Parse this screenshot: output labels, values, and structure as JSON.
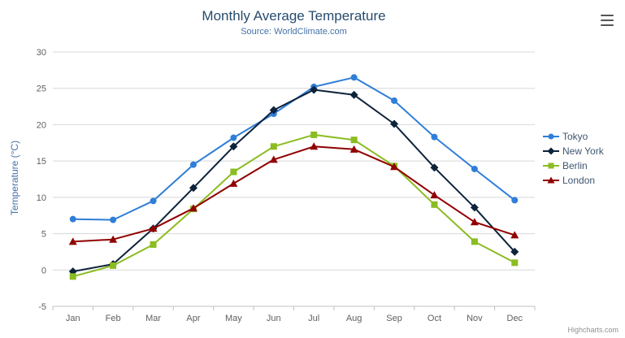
{
  "chart": {
    "title": "Monthly Average Temperature",
    "subtitle": "Source: WorldClimate.com",
    "y_axis_title": "Temperature (°C)",
    "credits": "Highcharts.com"
  },
  "chart_data": {
    "type": "line",
    "title": "Monthly Average Temperature",
    "subtitle": "Source: WorldClimate.com",
    "xlabel": "",
    "ylabel": "Temperature (°C)",
    "ylim": [
      -5,
      30
    ],
    "ytick": 5,
    "grid": true,
    "legend_position": "right",
    "categories": [
      "Jan",
      "Feb",
      "Mar",
      "Apr",
      "May",
      "Jun",
      "Jul",
      "Aug",
      "Sep",
      "Oct",
      "Nov",
      "Dec"
    ],
    "series": [
      {
        "name": "Tokyo",
        "color": "#2f7ed8",
        "marker": "circle",
        "values": [
          7.0,
          6.9,
          9.5,
          14.5,
          18.2,
          21.5,
          25.2,
          26.5,
          23.3,
          18.3,
          13.9,
          9.6
        ]
      },
      {
        "name": "New York",
        "color": "#0d233a",
        "marker": "diamond",
        "values": [
          -0.2,
          0.8,
          5.7,
          11.3,
          17.0,
          22.0,
          24.8,
          24.1,
          20.1,
          14.1,
          8.6,
          2.5
        ]
      },
      {
        "name": "Berlin",
        "color": "#8bbc21",
        "marker": "square",
        "values": [
          -0.9,
          0.6,
          3.5,
          8.4,
          13.5,
          17.0,
          18.6,
          17.9,
          14.3,
          9.0,
          3.9,
          1.0
        ]
      },
      {
        "name": "London",
        "color": "#910000",
        "marker": "triangle",
        "values": [
          3.9,
          4.2,
          5.7,
          8.5,
          11.9,
          15.2,
          17.0,
          16.6,
          14.2,
          10.3,
          6.6,
          4.8
        ]
      }
    ]
  }
}
